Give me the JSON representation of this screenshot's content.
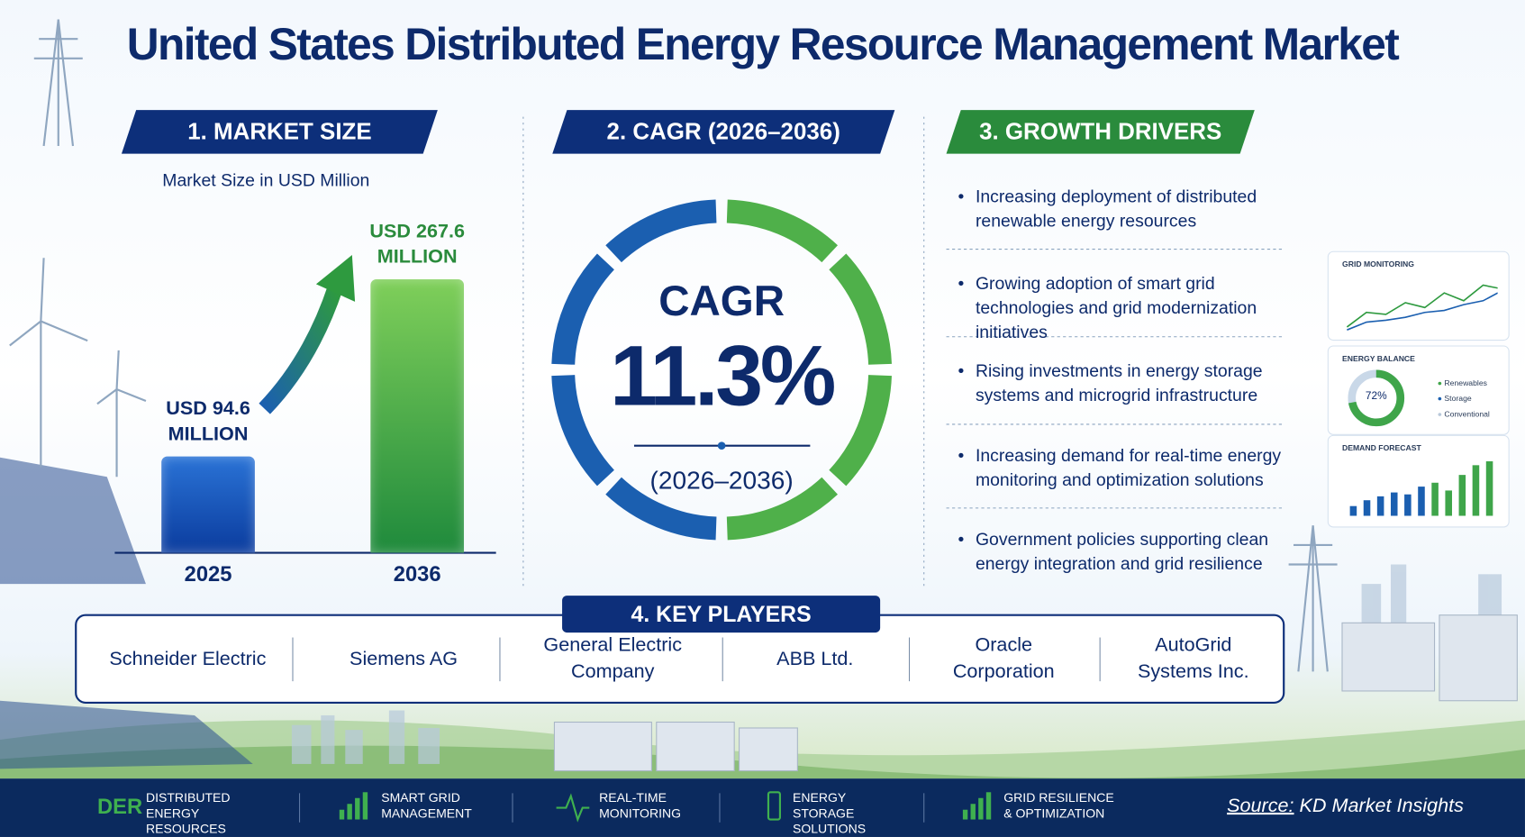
{
  "title": "United States Distributed Energy Resource Management Market",
  "market_size": {
    "heading": "1. MARKET SIZE",
    "subtitle": "Market Size in USD Million",
    "categories": [
      "2025",
      "2036"
    ],
    "values": [
      94.6,
      267.6
    ],
    "value_labels": [
      "USD 94.6 MILLION",
      "USD 267.6 MILLION"
    ]
  },
  "cagr": {
    "heading": "2. CAGR (2026–2036)",
    "label": "CAGR",
    "value": "11.3%",
    "period": "(2026–2036)"
  },
  "growth_drivers": {
    "heading": "3. GROWTH DRIVERS",
    "items": [
      "Increasing deployment of distributed renewable energy resources",
      "Growing adoption of smart grid technologies and grid modernization initiatives",
      "Rising investments in energy storage systems and microgrid infrastructure",
      "Increasing demand for real-time energy monitoring and optimization solutions",
      "Government policies supporting clean energy integration and grid resilience"
    ]
  },
  "key_players": {
    "heading": "4. KEY PLAYERS",
    "items": [
      "Schneider Electric",
      "Siemens AG",
      "General Electric Company",
      "ABB Ltd.",
      "Oracle Corporation",
      "AutoGrid Systems Inc."
    ]
  },
  "dashboard": {
    "grid_monitoring": {
      "title": "GRID MONITORING"
    },
    "energy_balance": {
      "title": "ENERGY BALANCE",
      "value": 72,
      "value_label": "72%",
      "legend": [
        "Renewables",
        "Storage",
        "Conventional"
      ]
    },
    "demand_forecast": {
      "title": "DEMAND FORECAST"
    }
  },
  "footer": {
    "items": [
      {
        "icon": "DER",
        "label": "DISTRIBUTED ENERGY RESOURCES"
      },
      {
        "label": "SMART GRID MANAGEMENT"
      },
      {
        "label": "REAL-TIME MONITORING"
      },
      {
        "label": "ENERGY STORAGE SOLUTIONS"
      },
      {
        "label": "GRID RESILIENCE & OPTIMIZATION"
      }
    ],
    "source_label": "Source:",
    "source": "KD Market Insights"
  }
}
